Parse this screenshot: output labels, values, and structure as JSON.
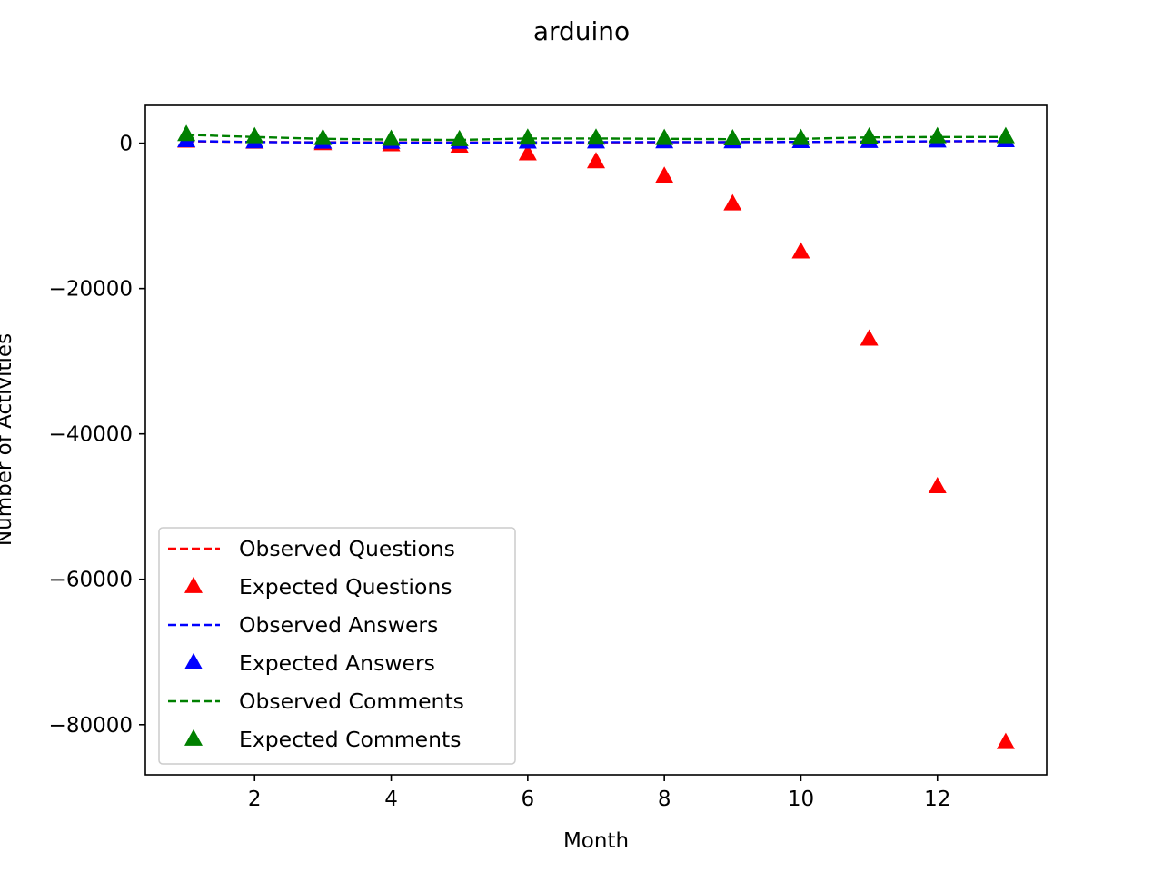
{
  "chart_data": {
    "type": "line",
    "title": "arduino",
    "xlabel": "Month",
    "ylabel": "Number of Activities",
    "xlim": [
      0.4,
      13.6
    ],
    "ylim": [
      -86900,
      5200
    ],
    "xticks": [
      2,
      4,
      6,
      8,
      10,
      12
    ],
    "yticks": [
      0,
      -20000,
      -40000,
      -60000,
      -80000
    ],
    "ytick_labels": [
      "0",
      "−20000",
      "−40000",
      "−60000",
      "−80000"
    ],
    "grid": false,
    "legend_position": "lower-left",
    "x": [
      1,
      2,
      3,
      4,
      5,
      6,
      7,
      8,
      9,
      10,
      11,
      12,
      13
    ],
    "series": [
      {
        "name": "Observed Questions",
        "style": "dashed",
        "color": "#ff0000",
        "values": [
          250,
          170,
          130,
          110,
          100,
          110,
          120,
          130,
          140,
          170,
          200,
          250,
          280
        ]
      },
      {
        "name": "Expected Questions",
        "style": "triangle",
        "color": "#ff0000",
        "values": [
          250,
          100,
          -100,
          -250,
          -450,
          -1500,
          -2600,
          -4600,
          -8400,
          -15000,
          -27000,
          -47300,
          -82500
        ]
      },
      {
        "name": "Observed Answers",
        "style": "dashed",
        "color": "#0000ff",
        "values": [
          300,
          150,
          100,
          80,
          80,
          120,
          140,
          150,
          150,
          180,
          200,
          260,
          300
        ]
      },
      {
        "name": "Expected Answers",
        "style": "triangle",
        "color": "#0000ff",
        "values": [
          300,
          150,
          100,
          80,
          80,
          120,
          140,
          150,
          150,
          180,
          200,
          260,
          300
        ]
      },
      {
        "name": "Observed Comments",
        "style": "dashed",
        "color": "#008000",
        "values": [
          1150,
          850,
          600,
          500,
          450,
          650,
          650,
          600,
          550,
          600,
          800,
          850,
          850
        ]
      },
      {
        "name": "Expected Comments",
        "style": "triangle",
        "color": "#008000",
        "values": [
          1150,
          850,
          600,
          500,
          450,
          650,
          650,
          600,
          550,
          600,
          800,
          850,
          850
        ]
      }
    ]
  }
}
